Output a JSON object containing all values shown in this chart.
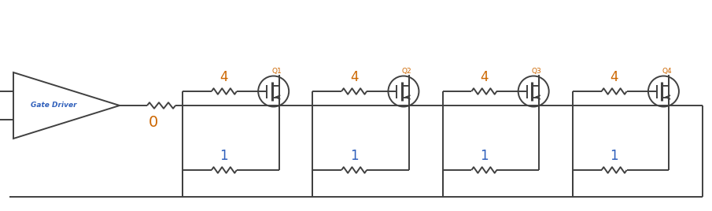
{
  "bg_color": "#ffffff",
  "line_color": "#404040",
  "text_color_orange": "#cc6600",
  "text_color_blue": "#3060bb",
  "gate_driver_label": "Gate Driver",
  "resistor_label_gate": "4",
  "resistor_label_source": "1",
  "resistor_label_main": "0",
  "mosfet_labels": [
    "Q1",
    "Q2",
    "Q3",
    "Q4"
  ],
  "n_mosfets": 4,
  "fig_width": 9.05,
  "fig_height": 2.68,
  "dpi": 100
}
